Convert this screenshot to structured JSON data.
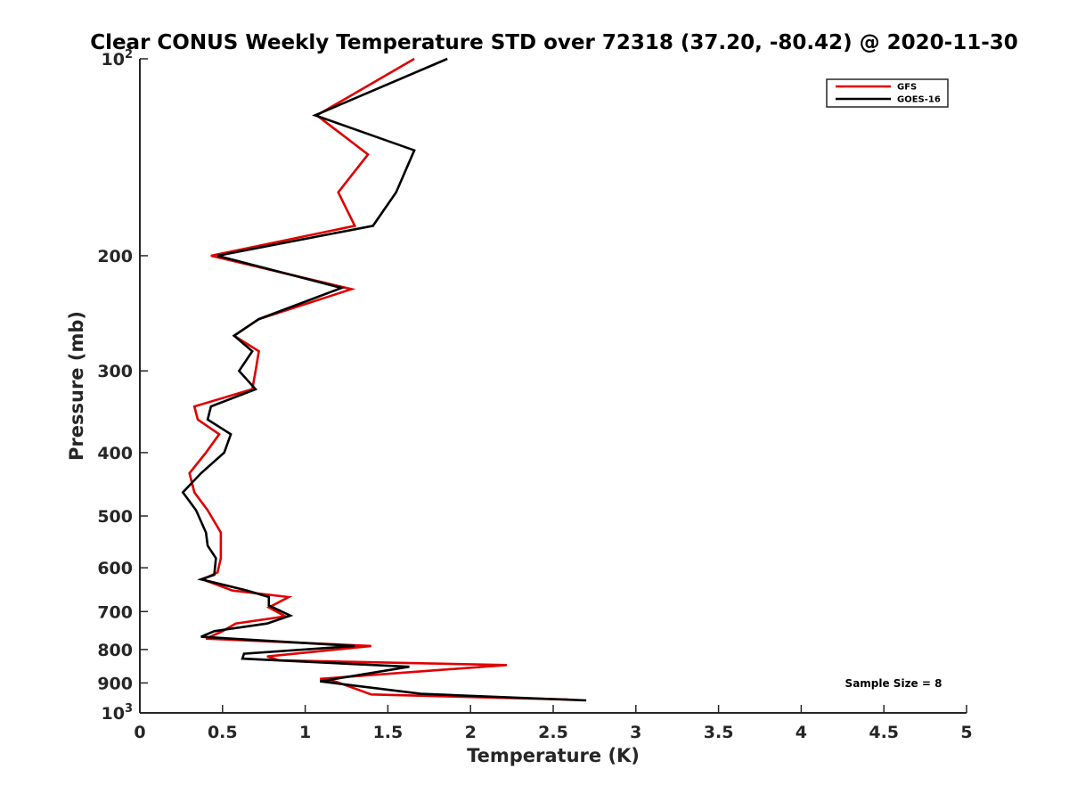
{
  "chart_data": {
    "type": "line",
    "title": "Clear CONUS Weekly Temperature STD over 72318 (37.20, -80.42) @ 2020-11-30",
    "xlabel": "Temperature (K)",
    "ylabel": "Pressure (mb)",
    "xlim": [
      0,
      5
    ],
    "ylim": [
      100,
      1000
    ],
    "yscale": "log",
    "y_reversed": true,
    "grid": false,
    "legend_position": "top-right",
    "x_ticks": [
      {
        "value": 0,
        "label": "0"
      },
      {
        "value": 0.5,
        "label": "0.5"
      },
      {
        "value": 1,
        "label": "1"
      },
      {
        "value": 1.5,
        "label": "1.5"
      },
      {
        "value": 2,
        "label": "2"
      },
      {
        "value": 2.5,
        "label": "2.5"
      },
      {
        "value": 3,
        "label": "3"
      },
      {
        "value": 3.5,
        "label": "3.5"
      },
      {
        "value": 4,
        "label": "4"
      },
      {
        "value": 4.5,
        "label": "4.5"
      },
      {
        "value": 5,
        "label": "5"
      }
    ],
    "y_ticks": [
      {
        "value": 100,
        "base": "10",
        "exp": "2"
      },
      {
        "value": 200,
        "label": "200"
      },
      {
        "value": 300,
        "label": "300"
      },
      {
        "value": 400,
        "label": "400"
      },
      {
        "value": 500,
        "label": "500"
      },
      {
        "value": 600,
        "label": "600"
      },
      {
        "value": 700,
        "label": "700"
      },
      {
        "value": 800,
        "label": "800"
      },
      {
        "value": 900,
        "label": "900"
      },
      {
        "value": 1000,
        "base": "10",
        "exp": "3"
      }
    ],
    "series": [
      {
        "name": "GFS",
        "color": "#e00000",
        "x": [
          1.66,
          1.07,
          1.38,
          1.2,
          1.3,
          0.43,
          1.28,
          0.72,
          0.57,
          0.72,
          0.7,
          0.68,
          0.33,
          0.35,
          0.48,
          0.4,
          0.3,
          0.33,
          0.41,
          0.49,
          0.49,
          0.47,
          0.38,
          0.56,
          0.9,
          0.78,
          0.88,
          0.58,
          0.5,
          0.4,
          1.4,
          0.77,
          0.84,
          2.22,
          1.09,
          1.19,
          1.4,
          2.59
        ],
        "y": [
          100,
          122,
          140,
          160,
          180,
          200,
          225,
          250,
          265,
          280,
          300,
          320,
          340,
          356,
          375,
          400,
          430,
          460,
          490,
          530,
          580,
          610,
          625,
          650,
          665,
          690,
          712,
          730,
          750,
          770,
          790,
          820,
          831,
          845,
          887,
          897,
          937,
          954
        ]
      },
      {
        "name": "GOES-16",
        "color": "#000000",
        "x": [
          1.86,
          1.06,
          1.66,
          1.55,
          1.41,
          0.47,
          1.22,
          0.72,
          0.57,
          0.68,
          0.6,
          0.7,
          0.43,
          0.41,
          0.55,
          0.51,
          0.37,
          0.26,
          0.34,
          0.4,
          0.41,
          0.46,
          0.45,
          0.37,
          0.65,
          0.78,
          0.78,
          0.91,
          0.77,
          0.45,
          0.37,
          1.3,
          0.63,
          0.62,
          1.63,
          1.09,
          1.7,
          2.7
        ],
        "y": [
          100,
          122,
          138,
          160,
          180,
          200,
          224,
          250,
          265,
          280,
          300,
          320,
          340,
          356,
          375,
          400,
          430,
          460,
          490,
          530,
          555,
          580,
          615,
          625,
          650,
          665,
          685,
          710,
          730,
          750,
          765,
          790,
          812,
          826,
          850,
          895,
          935,
          957
        ]
      }
    ],
    "annotations": [
      {
        "text": "Sample Size = 8",
        "position": "bottom-right"
      }
    ]
  }
}
